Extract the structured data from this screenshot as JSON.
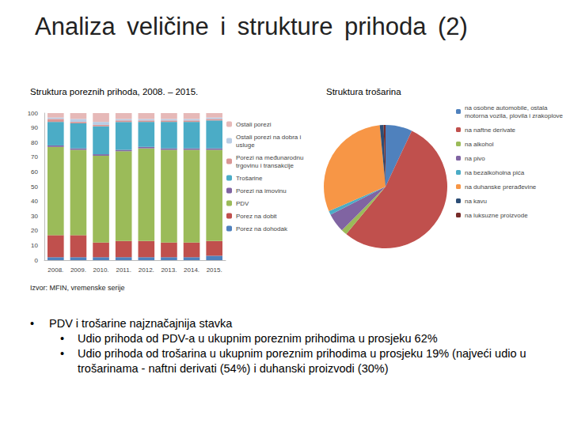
{
  "title": "Analiza veličine i strukture prihoda (2)",
  "source": "Izvor: MFIN, vremenske serije",
  "bullets": [
    {
      "text": "PDV i trošarine najznačajnija stavka",
      "sub": [
        "Udio prihoda od PDV-a u ukupnim poreznim prihodima u prosjeku 62%",
        "Udio prihoda od trošarina u ukupnim poreznim prihodima u prosjeku 19% (najveći udio u trošarinama - naftni derivati (54%) i duhanski proizvodi (30%)"
      ]
    }
  ],
  "chart_data": [
    {
      "type": "bar",
      "title": "Struktura poreznih prihoda, 2008. – 2015.",
      "categories": [
        "2008.",
        "2009.",
        "2010.",
        "2011.",
        "2012.",
        "2013.",
        "2014.",
        "2015."
      ],
      "stacked": true,
      "legend": "right",
      "grid": false,
      "ylim": [
        0,
        100
      ],
      "yticks": [
        0,
        10,
        20,
        30,
        40,
        50,
        60,
        70,
        80,
        90,
        100
      ],
      "series": [
        {
          "name": "Porez na dohodak",
          "color": "#4f81bd",
          "values": [
            2,
            2,
            2,
            2,
            2,
            2,
            2,
            3
          ]
        },
        {
          "name": "Porez na dobit",
          "color": "#c0504d",
          "values": [
            15,
            15,
            10,
            11,
            11,
            10,
            10,
            10
          ]
        },
        {
          "name": "PDV",
          "color": "#9bbb59",
          "values": [
            60,
            58,
            59,
            61,
            63,
            63,
            63,
            62
          ]
        },
        {
          "name": "Porezi na imovinu",
          "color": "#8064a2",
          "values": [
            1,
            1,
            1,
            1,
            1,
            1,
            1,
            1
          ]
        },
        {
          "name": "Trošarine",
          "color": "#4bacc6",
          "values": [
            16,
            17,
            19,
            19,
            17,
            18,
            18,
            19
          ]
        },
        {
          "name": "Porezi na međunarodnu trgovinu i transakcije",
          "color": "#d99694",
          "values": [
            2,
            1,
            1,
            1,
            1,
            1,
            1,
            1
          ]
        },
        {
          "name": "Ostali porezi na dobra i usluge",
          "color": "#b9cde5",
          "values": [
            1,
            2,
            2,
            1,
            1,
            1,
            1,
            1
          ]
        },
        {
          "name": "Ostali porezi",
          "color": "#e6b9b8",
          "values": [
            3,
            4,
            6,
            4,
            4,
            4,
            4,
            3
          ]
        }
      ]
    },
    {
      "type": "pie",
      "title": "Struktura trošarina",
      "legend": "right",
      "categories": [
        "na osobne automobile, ostala motorna vozila, plovila i zrakoplove",
        "na naftne derivate",
        "na alkohol",
        "na pivo",
        "na bezalkoholna pića",
        "na duhanske prerađevine",
        "na kavu",
        "na luksuzne proizvode"
      ],
      "values": [
        7,
        54,
        1.5,
        5,
        1,
        30,
        1,
        0.5
      ],
      "colors": [
        "#4f81bd",
        "#c0504d",
        "#9bbb59",
        "#8064a2",
        "#4bacc6",
        "#f79646",
        "#2c4d75",
        "#772c2a"
      ]
    }
  ]
}
